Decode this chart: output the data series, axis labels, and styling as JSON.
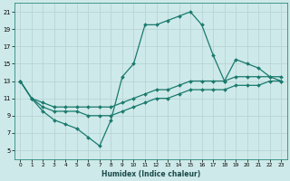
{
  "xlabel": "Humidex (Indice chaleur)",
  "background_color": "#cee9e9",
  "line_color": "#1a7a6e",
  "grid_color": "#b8d4d4",
  "xlim": [
    -0.5,
    23.5
  ],
  "ylim": [
    4,
    22
  ],
  "xticks": [
    0,
    1,
    2,
    3,
    4,
    5,
    6,
    7,
    8,
    9,
    10,
    11,
    12,
    13,
    14,
    15,
    16,
    17,
    18,
    19,
    20,
    21,
    22,
    23
  ],
  "yticks": [
    5,
    7,
    9,
    11,
    13,
    15,
    17,
    19,
    21
  ],
  "line1_x": [
    0,
    1,
    2,
    3,
    4,
    5,
    6,
    7,
    8,
    9,
    10,
    11,
    12,
    13,
    14,
    15,
    16,
    17,
    18,
    19,
    20,
    21,
    22,
    23
  ],
  "line1_y": [
    13,
    11,
    9.5,
    8.5,
    8,
    7.5,
    6.5,
    5.5,
    8.5,
    13.5,
    15,
    19.5,
    19.5,
    20,
    20.5,
    21,
    19.5,
    16,
    13,
    15.5,
    15,
    14.5,
    13.5,
    13
  ],
  "line2_x": [
    0,
    1,
    2,
    3,
    4,
    5,
    6,
    7,
    8,
    9,
    10,
    11,
    12,
    13,
    14,
    15,
    16,
    17,
    18,
    19,
    20,
    21,
    22,
    23
  ],
  "line2_y": [
    13,
    11,
    10.5,
    10,
    10,
    10,
    10,
    10,
    10,
    10.5,
    11,
    11.5,
    12,
    12,
    12.5,
    13,
    13,
    13,
    13,
    13.5,
    13.5,
    13.5,
    13.5,
    13.5
  ],
  "line3_x": [
    0,
    1,
    2,
    3,
    4,
    5,
    6,
    7,
    8,
    9,
    10,
    11,
    12,
    13,
    14,
    15,
    16,
    17,
    18,
    19,
    20,
    21,
    22,
    23
  ],
  "line3_y": [
    13,
    11,
    10,
    9.5,
    9.5,
    9.5,
    9,
    9,
    9,
    9.5,
    10,
    10.5,
    11,
    11,
    11.5,
    12,
    12,
    12,
    12,
    12.5,
    12.5,
    12.5,
    13,
    13
  ]
}
